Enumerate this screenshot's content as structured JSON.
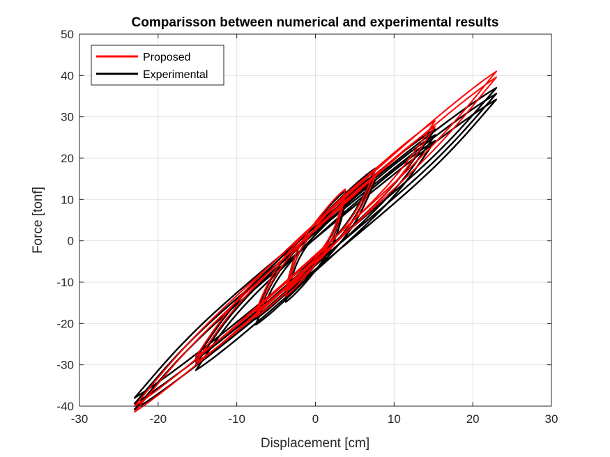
{
  "chart_data": {
    "type": "line",
    "title": "Comparisson between numerical and experimental results",
    "xlabel": "Displacement [cm]",
    "ylabel": "Force [tonf]",
    "xlim": [
      -30,
      30
    ],
    "ylim": [
      -40,
      50
    ],
    "xticks": [
      "-30",
      "-20",
      "-10",
      "0",
      "10",
      "20",
      "30"
    ],
    "yticks": [
      "-40",
      "-30",
      "-20",
      "-10",
      "0",
      "10",
      "20",
      "30",
      "40",
      "50"
    ],
    "grid": true,
    "legend_position": "top-left",
    "series": [
      {
        "name": "Proposed",
        "color": "#ff0000",
        "loops": [
          {
            "amplitude": 3.8,
            "f_max": 12.5,
            "f_min": -12.0
          },
          {
            "amplitude": 7.6,
            "f_max": 17.0,
            "f_min": -17.0
          },
          {
            "amplitude": 15.2,
            "f_max": 29.0,
            "f_min": -28.0
          },
          {
            "amplitude": 23.0,
            "f_max": 41.0,
            "f_min": -40.0
          }
        ]
      },
      {
        "name": "Experimental",
        "color": "#000000",
        "loops": [
          {
            "amplitude": 3.8,
            "f_max": 12.0,
            "f_min": -12.0
          },
          {
            "amplitude": 7.6,
            "f_max": 17.5,
            "f_min": -17.5
          },
          {
            "amplitude": 15.2,
            "f_max": 27.0,
            "f_min": -28.5
          },
          {
            "amplitude": 23.0,
            "f_max": 37.0,
            "f_min": -38.0
          }
        ]
      }
    ]
  }
}
